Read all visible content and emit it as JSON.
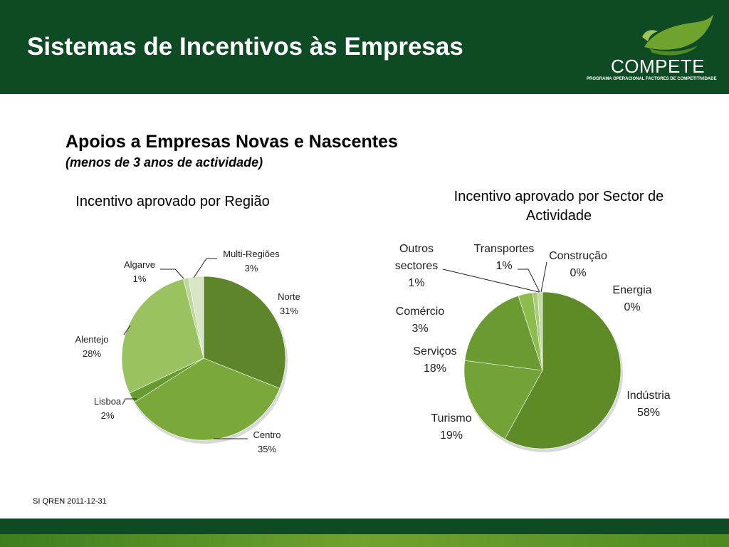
{
  "header": {
    "title": "Sistemas de Incentivos às Empresas",
    "logo_text": "COMPETE",
    "logo_subtitle": "PROGRAMA OPERACIONAL FACTORES DE COMPETITIVIDADE"
  },
  "section": {
    "title": "Apoios a Empresas Novas e Nascentes",
    "subtitle": "(menos de 3 anos de actividade)"
  },
  "source_note": "SI QREN 2011-12-31",
  "colors": {
    "header_bg": "#0e4a23",
    "footer_bg": "#0e4a23"
  },
  "chart_data": [
    {
      "type": "pie",
      "title": "Incentivo aprovado por Região",
      "slices": [
        {
          "label": "Norte",
          "value": 31,
          "pct_label": "31%",
          "color": "#5d862a"
        },
        {
          "label": "Centro",
          "value": 35,
          "pct_label": "35%",
          "color": "#7aa83a"
        },
        {
          "label": "Lisboa",
          "value": 2,
          "pct_label": "2%",
          "color": "#679a30"
        },
        {
          "label": "Alentejo",
          "value": 28,
          "pct_label": "28%",
          "color": "#9ac261"
        },
        {
          "label": "Algarve",
          "value": 1,
          "pct_label": "1%",
          "color": "#bcd89a"
        },
        {
          "label": "Multi-Regiões",
          "value": 3,
          "pct_label": "3%",
          "color": "#d8e6c6"
        }
      ]
    },
    {
      "type": "pie",
      "title": "Incentivo aprovado por Sector de Actividade",
      "slices": [
        {
          "label": "Indústria",
          "value": 58,
          "pct_label": "58%",
          "color": "#5e8a28"
        },
        {
          "label": "Turismo",
          "value": 19,
          "pct_label": "19%",
          "color": "#73a236"
        },
        {
          "label": "Serviços",
          "value": 18,
          "pct_label": "18%",
          "color": "#6b9a33"
        },
        {
          "label": "Comércio",
          "value": 3,
          "pct_label": "3%",
          "color": "#8dbb4e"
        },
        {
          "label": "Outros sectores",
          "value": 1,
          "pct_label": "1%",
          "color": "#a9cc7a"
        },
        {
          "label": "Transportes",
          "value": 1,
          "pct_label": "1%",
          "color": "#c3dba4"
        },
        {
          "label": "Construção",
          "value": 0,
          "pct_label": "0%",
          "color": "#dbe8cc"
        },
        {
          "label": "Energia",
          "value": 0,
          "pct_label": "0%",
          "color": "#eaf2e0"
        }
      ]
    }
  ]
}
